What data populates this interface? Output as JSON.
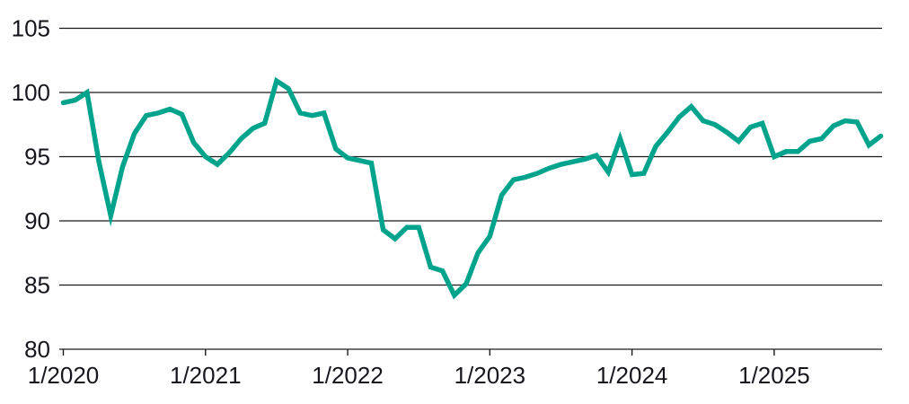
{
  "chart_data": {
    "type": "line",
    "title": "",
    "xlabel": "",
    "ylabel": "",
    "ylim": [
      80,
      105
    ],
    "y_ticks": [
      80,
      85,
      90,
      95,
      100,
      105
    ],
    "x_tick_labels": [
      "1/2020",
      "1/2021",
      "1/2022",
      "1/2023",
      "1/2024",
      "1/2025"
    ],
    "x_tick_every_months": 12,
    "grid": "horizontal",
    "legend": "none",
    "frequency": "monthly",
    "x": [
      "1/2020",
      "2/2020",
      "3/2020",
      "4/2020",
      "5/2020",
      "6/2020",
      "7/2020",
      "8/2020",
      "9/2020",
      "10/2020",
      "11/2020",
      "12/2020",
      "1/2021",
      "2/2021",
      "3/2021",
      "4/2021",
      "5/2021",
      "6/2021",
      "7/2021",
      "8/2021",
      "9/2021",
      "10/2021",
      "11/2021",
      "12/2021",
      "1/2022",
      "2/2022",
      "3/2022",
      "4/2022",
      "5/2022",
      "6/2022",
      "7/2022",
      "8/2022",
      "9/2022",
      "10/2022",
      "11/2022",
      "12/2022",
      "1/2023",
      "2/2023",
      "3/2023",
      "4/2023",
      "5/2023",
      "6/2023",
      "7/2023",
      "8/2023",
      "9/2023",
      "10/2023",
      "11/2023",
      "12/2023",
      "1/2024",
      "2/2024",
      "3/2024",
      "4/2024",
      "5/2024",
      "6/2024",
      "7/2024",
      "8/2024",
      "9/2024",
      "10/2024",
      "11/2024",
      "12/2024",
      "1/2025",
      "2/2025",
      "3/2025",
      "4/2025",
      "5/2025",
      "6/2025",
      "7/2025",
      "8/2025",
      "9/2025",
      "10/2025"
    ],
    "series": [
      {
        "name": "index-line",
        "color": "#00a38c",
        "values": [
          99.2,
          99.4,
          100.0,
          94.6,
          90.4,
          94.2,
          96.8,
          98.2,
          98.4,
          98.7,
          98.3,
          96.1,
          95.0,
          94.4,
          95.3,
          96.4,
          97.2,
          97.6,
          100.9,
          100.3,
          98.4,
          98.2,
          98.4,
          95.6,
          94.9,
          94.7,
          94.5,
          89.3,
          88.6,
          89.5,
          89.5,
          86.4,
          86.1,
          84.2,
          85.1,
          87.5,
          88.8,
          92.0,
          93.2,
          93.4,
          93.7,
          94.1,
          94.4,
          94.6,
          94.8,
          95.1,
          93.8,
          96.4,
          93.6,
          93.7,
          95.8,
          96.9,
          98.1,
          98.9,
          97.8,
          97.5,
          96.9,
          96.2,
          97.3,
          97.6,
          95.0,
          95.4,
          95.4,
          96.2,
          96.4,
          97.4,
          97.8,
          97.7,
          95.9,
          96.6
        ]
      }
    ]
  },
  "colors": {
    "line": "#00a38c",
    "grid": "#1a1a1a",
    "text": "#16161e",
    "background": "#ffffff"
  }
}
